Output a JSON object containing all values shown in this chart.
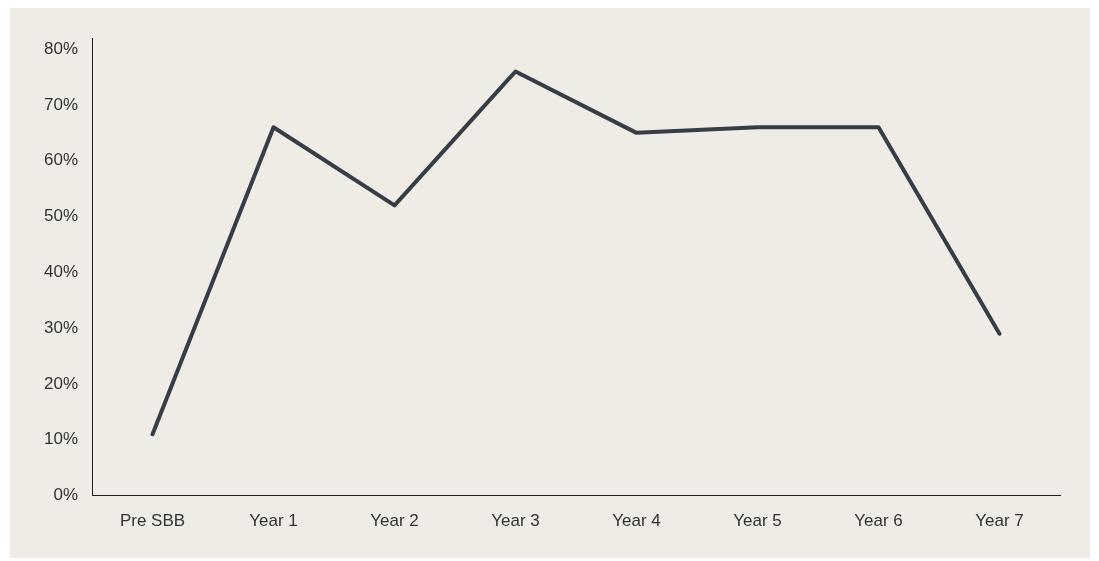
{
  "chart_data": {
    "type": "line",
    "categories": [
      "Pre SBB",
      "Year 1",
      "Year 2",
      "Year 3",
      "Year 4",
      "Year 5",
      "Year 6",
      "Year 7"
    ],
    "series": [
      {
        "color": "#373d47",
        "values": [
          11,
          66,
          52,
          76,
          65,
          66,
          66,
          29
        ]
      }
    ],
    "ylim": [
      0,
      82
    ],
    "yticks": [
      {
        "value": 0,
        "label": "0%"
      },
      {
        "value": 10,
        "label": "10%"
      },
      {
        "value": 20,
        "label": "20%"
      },
      {
        "value": 30,
        "label": "30%"
      },
      {
        "value": 40,
        "label": "40%"
      },
      {
        "value": 50,
        "label": "50%"
      },
      {
        "value": 60,
        "label": "60%"
      },
      {
        "value": 70,
        "label": "70%"
      },
      {
        "value": 80,
        "label": "80%"
      }
    ],
    "grid": false,
    "legend": false,
    "marker": "none",
    "line_style": "solid"
  }
}
